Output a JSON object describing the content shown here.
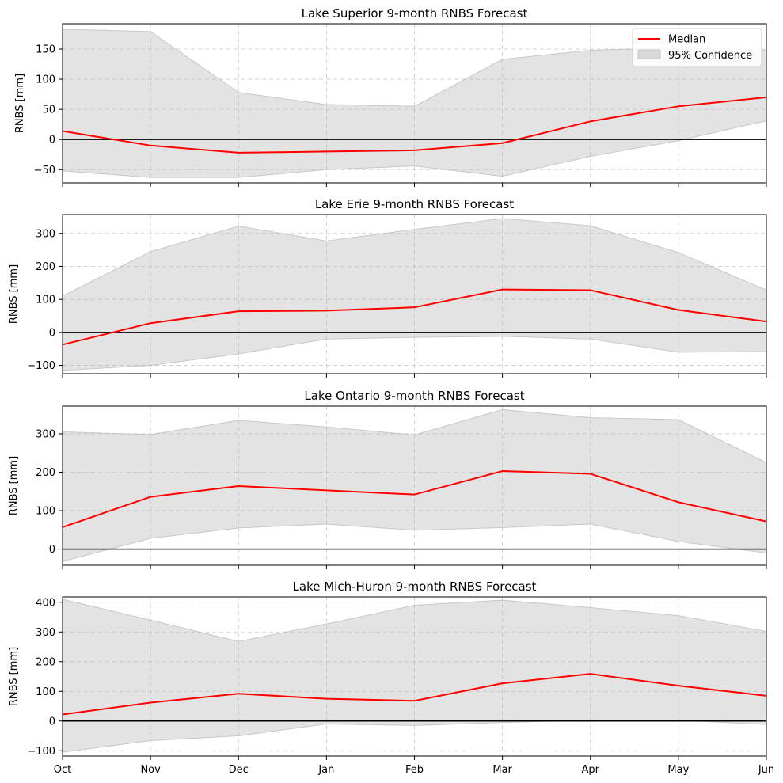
{
  "colors": {
    "median": "#ff0000",
    "band_fill": "#d9d9d9",
    "band_edge": "#c8c8c8",
    "zero_line": "#000000",
    "grid": "#b0b0b0"
  },
  "legend": {
    "median_label": "Median",
    "band_label": "95% Confidence",
    "placement": "upper-right",
    "panel": 0
  },
  "chart_data": [
    {
      "type": "line",
      "title": "Lake Superior 9-month RNBS Forecast",
      "xlabel": "",
      "ylabel": "RNBS [mm]",
      "categories": [
        "Oct",
        "Nov",
        "Dec",
        "Jan",
        "Feb",
        "Mar",
        "Apr",
        "May",
        "Jun"
      ],
      "ylim": [
        -72,
        192
      ],
      "yticks": [
        -50,
        0,
        50,
        100,
        150
      ],
      "grid": true,
      "show_x_tick_labels": false,
      "series": [
        {
          "name": "Median",
          "values": [
            14,
            -10,
            -22,
            -20,
            -18,
            -6,
            30,
            55,
            70
          ]
        },
        {
          "name": "95% Confidence",
          "lower": [
            -52,
            -63,
            -63,
            -50,
            -44,
            -61,
            -28,
            -2,
            31
          ],
          "upper": [
            183,
            179,
            78,
            58,
            55,
            133,
            148,
            152,
            148
          ]
        }
      ]
    },
    {
      "type": "line",
      "title": "Lake Erie 9-month RNBS Forecast",
      "xlabel": "",
      "ylabel": "RNBS [mm]",
      "categories": [
        "Oct",
        "Nov",
        "Dec",
        "Jan",
        "Feb",
        "Mar",
        "Apr",
        "May",
        "Jun"
      ],
      "ylim": [
        -125,
        357
      ],
      "yticks": [
        -100,
        0,
        100,
        200,
        300
      ],
      "grid": true,
      "show_x_tick_labels": false,
      "series": [
        {
          "name": "Median",
          "values": [
            -37,
            28,
            64,
            66,
            76,
            130,
            128,
            68,
            33
          ]
        },
        {
          "name": "95% Confidence",
          "lower": [
            -115,
            -100,
            -65,
            -20,
            -15,
            -12,
            -20,
            -60,
            -58
          ],
          "upper": [
            110,
            245,
            322,
            277,
            312,
            345,
            323,
            242,
            128
          ]
        }
      ]
    },
    {
      "type": "line",
      "title": "Lake Ontario 9-month RNBS Forecast",
      "xlabel": "",
      "ylabel": "RNBS [mm]",
      "categories": [
        "Oct",
        "Nov",
        "Dec",
        "Jan",
        "Feb",
        "Mar",
        "Apr",
        "May",
        "Jun"
      ],
      "ylim": [
        -42,
        372
      ],
      "yticks": [
        0,
        100,
        200,
        300
      ],
      "grid": true,
      "show_x_tick_labels": false,
      "series": [
        {
          "name": "Median",
          "values": [
            57,
            136,
            164,
            153,
            142,
            203,
            196,
            122,
            72
          ]
        },
        {
          "name": "95% Confidence",
          "lower": [
            -32,
            28,
            55,
            65,
            49,
            56,
            65,
            20,
            -10
          ],
          "upper": [
            305,
            298,
            335,
            318,
            297,
            363,
            342,
            337,
            225
          ]
        }
      ]
    },
    {
      "type": "line",
      "title": "Lake Mich-Huron 9-month RNBS Forecast",
      "xlabel": "",
      "ylabel": "RNBS [mm]",
      "categories": [
        "Oct",
        "Nov",
        "Dec",
        "Jan",
        "Feb",
        "Mar",
        "Apr",
        "May",
        "Jun"
      ],
      "ylim": [
        -118,
        418
      ],
      "yticks": [
        -100,
        0,
        100,
        200,
        300,
        400
      ],
      "grid": true,
      "show_x_tick_labels": true,
      "series": [
        {
          "name": "Median",
          "values": [
            22,
            62,
            92,
            75,
            68,
            127,
            159,
            119,
            85
          ]
        },
        {
          "name": "95% Confidence",
          "lower": [
            -105,
            -66,
            -50,
            -10,
            -15,
            -5,
            3,
            3,
            -12
          ],
          "upper": [
            410,
            340,
            268,
            327,
            390,
            407,
            382,
            355,
            302
          ]
        }
      ]
    }
  ]
}
